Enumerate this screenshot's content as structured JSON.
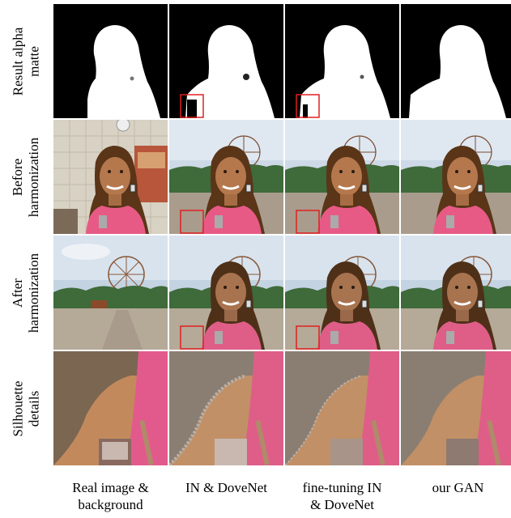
{
  "row_labels": [
    [
      "Result alpha",
      "matte"
    ],
    [
      "Before",
      "harmonization"
    ],
    [
      "After",
      "harmonization"
    ],
    [
      "Silhouette",
      "details"
    ]
  ],
  "column_labels": [
    [
      "Real image &",
      "background"
    ],
    [
      "IN & DoveNet"
    ],
    [
      "fine-tuning IN",
      "& DoveNet"
    ],
    [
      "our GAN"
    ]
  ],
  "colors": {
    "highlight_box": "#e02020",
    "matte_bg": "#000000",
    "matte_fg": "#ffffff"
  }
}
